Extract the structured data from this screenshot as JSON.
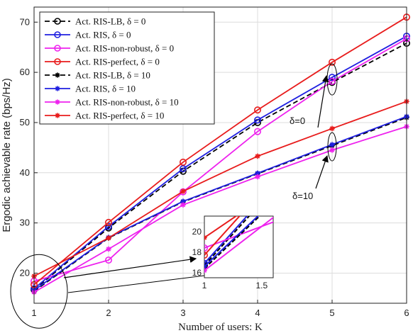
{
  "chart_data": {
    "type": "line",
    "xlabel": "Number of users: K",
    "ylabel": "Ergodic achievable rate (bps/Hz)",
    "x": [
      1,
      2,
      3,
      4,
      5,
      6
    ],
    "xlim": [
      1,
      6
    ],
    "ylim": [
      14,
      73
    ],
    "xticks": [
      1,
      2,
      3,
      4,
      5,
      6
    ],
    "yticks": [
      20,
      30,
      40,
      50,
      60,
      70
    ],
    "grid": true,
    "legend_position": "top-left",
    "series": [
      {
        "name": "Act. RIS-LB, δ = 0",
        "color": "#000000",
        "dash": true,
        "marker": "circle",
        "values": [
          16.7,
          29.0,
          40.3,
          50.0,
          58.0,
          65.8
        ]
      },
      {
        "name": "Act. RIS, δ = 0",
        "color": "#1f1fe0",
        "dash": false,
        "marker": "circle",
        "values": [
          16.9,
          29.3,
          40.8,
          50.5,
          59.0,
          67.2
        ]
      },
      {
        "name": "Act. RIS-non-robust, δ = 0",
        "color": "#ee22ee",
        "dash": false,
        "marker": "circle",
        "values": [
          18.4,
          22.6,
          36.2,
          48.2,
          58.2,
          66.7
        ]
      },
      {
        "name": "Act. RIS-perfect, δ = 0",
        "color": "#e81c1c",
        "dash": false,
        "marker": "circle",
        "values": [
          17.7,
          30.1,
          42.1,
          52.5,
          62.0,
          71.0
        ]
      },
      {
        "name": "Act. RIS-LB, δ = 10",
        "color": "#000000",
        "dash": true,
        "marker": "star",
        "values": [
          16.4,
          27.0,
          34.2,
          39.8,
          45.4,
          51.0
        ]
      },
      {
        "name": "Act. RIS, δ = 10",
        "color": "#1f1fe0",
        "dash": false,
        "marker": "star",
        "values": [
          16.6,
          27.1,
          34.3,
          39.9,
          45.6,
          51.2
        ]
      },
      {
        "name": "Act. RIS-non-robust, δ = 10",
        "color": "#ee22ee",
        "dash": false,
        "marker": "star",
        "values": [
          16.2,
          24.8,
          33.6,
          39.2,
          44.5,
          49.2
        ]
      },
      {
        "name": "Act. RIS-perfect, δ = 10",
        "color": "#e81c1c",
        "dash": false,
        "marker": "star",
        "values": [
          19.4,
          27.0,
          36.3,
          43.3,
          48.8,
          54.2
        ]
      }
    ],
    "annotations": [
      {
        "text": "δ=0"
      },
      {
        "text": "δ=10"
      }
    ],
    "inset": {
      "xlim": [
        1,
        1.6
      ],
      "ylim": [
        15.5,
        21.5
      ],
      "xticks": [
        1,
        1.5
      ],
      "xtick_labels": [
        "1",
        "1.5"
      ],
      "yticks": [
        16,
        18,
        20
      ],
      "ytick_labels": [
        "16",
        "18",
        "20"
      ]
    }
  }
}
